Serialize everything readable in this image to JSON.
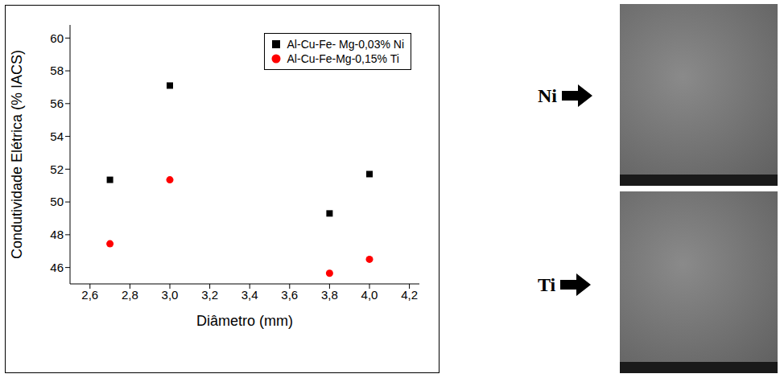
{
  "chart_data": {
    "type": "scatter",
    "x_label": "Diâmetro (mm)",
    "y_label": "Condutividade Elétrica (% IACS)",
    "xlim": [
      2.5,
      4.25
    ],
    "xticks": [
      {
        "value": 2.6,
        "label": "2,6"
      },
      {
        "value": 2.8,
        "label": "2,8"
      },
      {
        "value": 3.0,
        "label": "3,0"
      },
      {
        "value": 3.2,
        "label": "3,2"
      },
      {
        "value": 3.4,
        "label": "3,4"
      },
      {
        "value": 3.6,
        "label": "3,6"
      },
      {
        "value": 3.8,
        "label": "3,8"
      },
      {
        "value": 4.0,
        "label": "4,0"
      },
      {
        "value": 4.2,
        "label": "4,2"
      }
    ],
    "ylim": [
      45,
      60.8
    ],
    "yticks": [
      46,
      48,
      50,
      52,
      54,
      56,
      58,
      60
    ],
    "legend": "upper right",
    "series": [
      {
        "name": "Al-Cu-Fe- Mg-0,03% Ni",
        "color": "#000000",
        "marker": "square",
        "x": [
          2.7,
          3.0,
          3.8,
          4.0
        ],
        "values": [
          51.35,
          57.1,
          49.3,
          51.7
        ]
      },
      {
        "name": "Al-Cu-Fe-Mg-0,15% Ti",
        "color": "#ff0000",
        "marker": "circle",
        "x": [
          2.7,
          3.0,
          3.8,
          4.0
        ],
        "values": [
          47.45,
          51.35,
          45.65,
          46.5
        ]
      }
    ]
  },
  "images": [
    {
      "label": "Ni"
    },
    {
      "label": "Ti"
    }
  ]
}
